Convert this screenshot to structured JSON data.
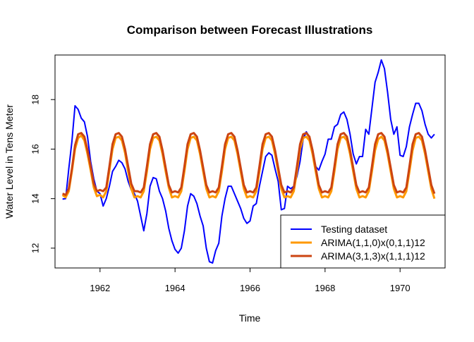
{
  "chart_data": {
    "type": "line",
    "title": "Comparison between Forecast Illustrations",
    "xlabel": "Time",
    "ylabel": "Water Level in Tens Meter",
    "xlim": [
      1960.8,
      1971.2
    ],
    "ylim": [
      11.2,
      19.8
    ],
    "x_ticks": [
      1962,
      1964,
      1966,
      1968,
      1970
    ],
    "y_ticks": [
      12,
      14,
      16,
      18
    ],
    "x_tick_labels": [
      "1962",
      "1964",
      "1966",
      "1968",
      "1970"
    ],
    "y_tick_labels": [
      "12",
      "14",
      "16",
      "18"
    ],
    "legend_position": "bottom-right",
    "x_start": 1961.0,
    "x_step": 0.0833333,
    "series": [
      {
        "name": "Testing dataset",
        "color": "#0000ff",
        "values": [
          13.98,
          14.0,
          15.2,
          16.3,
          17.75,
          17.6,
          17.25,
          17.1,
          16.5,
          15.5,
          14.8,
          14.3,
          14.2,
          13.7,
          14.0,
          14.5,
          15.1,
          15.3,
          15.55,
          15.45,
          15.2,
          14.7,
          14.35,
          14.2,
          13.9,
          13.3,
          12.7,
          13.4,
          14.5,
          14.85,
          14.8,
          14.3,
          14.0,
          13.5,
          12.8,
          12.3,
          11.95,
          11.8,
          12.0,
          12.7,
          13.7,
          14.2,
          14.1,
          13.8,
          13.3,
          12.9,
          12.0,
          11.45,
          11.4,
          11.9,
          12.2,
          13.3,
          14.0,
          14.5,
          14.5,
          14.2,
          13.9,
          13.6,
          13.2,
          13.0,
          13.1,
          13.7,
          13.8,
          14.5,
          15.1,
          15.7,
          15.85,
          15.75,
          15.2,
          14.7,
          13.55,
          13.6,
          14.5,
          14.4,
          14.5,
          14.9,
          15.5,
          16.4,
          16.7,
          16.5,
          16.0,
          15.3,
          15.15,
          15.5,
          15.8,
          16.4,
          16.4,
          16.9,
          17.0,
          17.4,
          17.5,
          17.2,
          16.6,
          15.8,
          15.4,
          15.7,
          15.7,
          16.8,
          16.6,
          17.65,
          18.7,
          19.1,
          19.6,
          19.25,
          18.3,
          17.2,
          16.6,
          16.9,
          15.75,
          15.7,
          16.1,
          16.9,
          17.4,
          17.85,
          17.85,
          17.55,
          17.0,
          16.6,
          16.45,
          16.6
        ]
      },
      {
        "name": "ARIMA(1,1,0)x(0,1,1)12",
        "color": "#ff9900",
        "values": [
          14.15,
          14.05,
          14.3,
          15.1,
          16.0,
          16.45,
          16.55,
          16.35,
          15.8,
          15.15,
          14.45,
          14.1,
          14.15,
          14.05,
          14.3,
          15.15,
          16.0,
          16.45,
          16.5,
          16.35,
          15.85,
          15.1,
          14.4,
          14.05,
          14.1,
          14.05,
          14.3,
          15.1,
          16.0,
          16.45,
          16.5,
          16.35,
          15.8,
          15.1,
          14.45,
          14.05,
          14.1,
          14.05,
          14.3,
          15.1,
          16.0,
          16.45,
          16.5,
          16.35,
          15.8,
          15.1,
          14.4,
          14.05,
          14.1,
          14.05,
          14.3,
          15.1,
          16.0,
          16.45,
          16.5,
          16.35,
          15.8,
          15.1,
          14.4,
          14.05,
          14.1,
          14.05,
          14.3,
          15.1,
          16.0,
          16.45,
          16.5,
          16.35,
          15.8,
          15.1,
          14.4,
          14.05,
          14.1,
          14.05,
          14.3,
          15.1,
          16.0,
          16.45,
          16.5,
          16.35,
          15.8,
          15.1,
          14.4,
          14.05,
          14.1,
          14.05,
          14.3,
          15.1,
          16.0,
          16.45,
          16.5,
          16.35,
          15.8,
          15.1,
          14.4,
          14.05,
          14.1,
          14.05,
          14.3,
          15.1,
          15.95,
          16.4,
          16.5,
          16.35,
          15.8,
          15.1,
          14.4,
          14.05,
          14.1,
          14.05,
          14.3,
          15.1,
          15.95,
          16.45,
          16.5,
          16.35,
          15.8,
          15.1,
          14.4,
          14.0
        ]
      },
      {
        "name": "ARIMA(3,1,3)x(1,1,1)12",
        "color": "#cc4411",
        "values": [
          14.2,
          14.15,
          14.4,
          15.2,
          16.15,
          16.6,
          16.65,
          16.5,
          15.95,
          15.3,
          14.6,
          14.3,
          14.35,
          14.3,
          14.45,
          15.3,
          16.2,
          16.6,
          16.65,
          16.5,
          16.0,
          15.3,
          14.6,
          14.3,
          14.3,
          14.25,
          14.45,
          15.3,
          16.2,
          16.6,
          16.65,
          16.5,
          15.95,
          15.25,
          14.55,
          14.25,
          14.3,
          14.25,
          14.45,
          15.3,
          16.2,
          16.6,
          16.65,
          16.5,
          15.95,
          15.25,
          14.55,
          14.25,
          14.3,
          14.25,
          14.45,
          15.3,
          16.2,
          16.6,
          16.65,
          16.5,
          15.95,
          15.25,
          14.55,
          14.25,
          14.3,
          14.25,
          14.45,
          15.3,
          16.2,
          16.6,
          16.65,
          16.5,
          15.95,
          15.25,
          14.55,
          14.25,
          14.3,
          14.25,
          14.45,
          15.3,
          16.2,
          16.6,
          16.65,
          16.5,
          15.95,
          15.25,
          14.55,
          14.25,
          14.3,
          14.25,
          14.45,
          15.3,
          16.2,
          16.6,
          16.65,
          16.5,
          15.95,
          15.25,
          14.55,
          14.25,
          14.3,
          14.25,
          14.45,
          15.3,
          16.2,
          16.6,
          16.65,
          16.5,
          15.95,
          15.25,
          14.55,
          14.25,
          14.3,
          14.25,
          14.45,
          15.3,
          16.2,
          16.6,
          16.65,
          16.5,
          15.95,
          15.25,
          14.55,
          14.2
        ]
      }
    ]
  }
}
